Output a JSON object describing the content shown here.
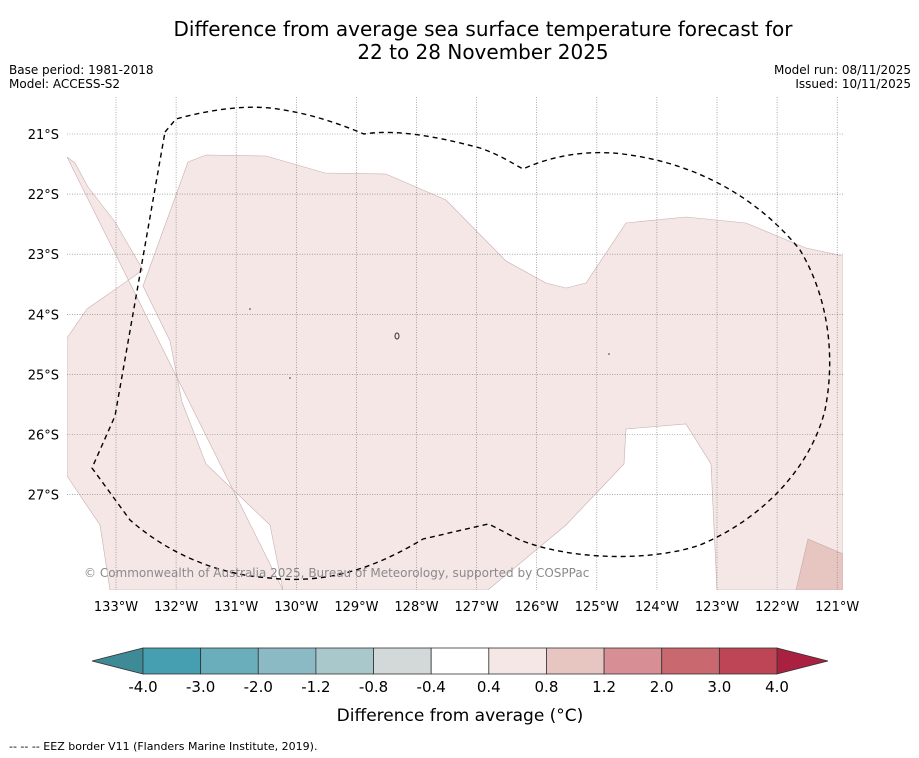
{
  "header": {
    "title_line1": "Difference from average sea surface temperature forecast for",
    "title_line2": "22 to 28 November 2025",
    "base_period": "Base period: 1981-2018",
    "model": "Model: ACCESS-S2",
    "model_run": "Model run: 08/11/2025",
    "issued": "Issued: 10/11/2025"
  },
  "map": {
    "lat_labels": [
      "21°S",
      "22°S",
      "23°S",
      "24°S",
      "25°S",
      "26°S",
      "27°S"
    ],
    "lon_labels": [
      "133°W",
      "132°W",
      "131°W",
      "130°W",
      "129°W",
      "128°W",
      "127°W",
      "126°W",
      "125°W",
      "124°W",
      "123°W",
      "122°W",
      "121°W"
    ],
    "lat_values": [
      -21,
      -22,
      -23,
      -24,
      -25,
      -26,
      -27
    ],
    "lon_values": [
      -133,
      -132,
      -131,
      -130,
      -129,
      -128,
      -127,
      -126,
      -125,
      -124,
      -123,
      -122,
      -121
    ],
    "copyright": "© Commonwealth of Australia 2025, Bureau of Meteorology, supported by COSPPac",
    "fill_color": "#f4e7e6",
    "warm_color": "#e7c5c0"
  },
  "colorbar": {
    "label": "Difference from average (°C)",
    "ticks": [
      "-4.0",
      "-3.0",
      "-2.0",
      "-1.2",
      "-0.8",
      "-0.4",
      "0.4",
      "0.8",
      "1.2",
      "2.0",
      "3.0",
      "4.0"
    ],
    "colors": [
      "#459fb0",
      "#6aaebc",
      "#8bbac4",
      "#a9c8cc",
      "#d3d9d9",
      "#ffffff",
      "#f4e7e6",
      "#e7c5c0",
      "#d78f95",
      "#c9686f",
      "#bd4556"
    ],
    "under_color": "#3e8a96",
    "over_color": "#a92040"
  },
  "footer": {
    "eez_note": "--  --  -- EEZ border V11 (Flanders Marine Institute, 2019)."
  }
}
